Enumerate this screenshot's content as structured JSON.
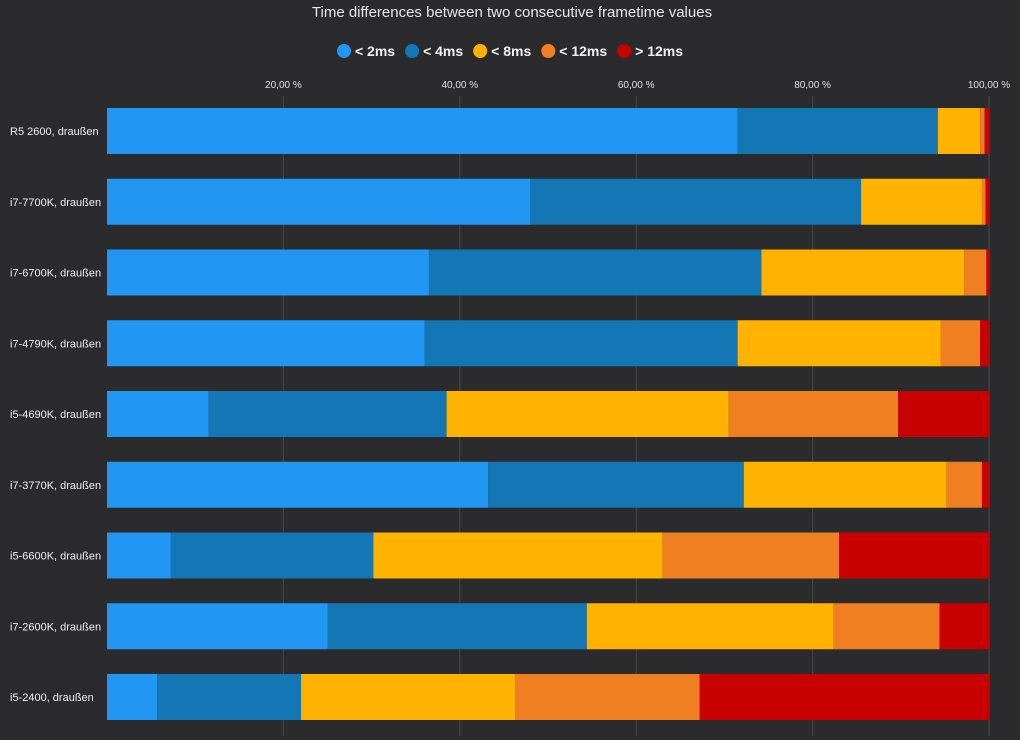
{
  "chart_data": {
    "type": "bar",
    "orientation": "horizontal",
    "stacked": true,
    "title": "Time differences between two consecutive frametime values",
    "xlabel": "",
    "ylabel": "",
    "xlim": [
      0,
      100
    ],
    "xticks": [
      20,
      40,
      60,
      80,
      100
    ],
    "xtick_labels": [
      "20,00 %",
      "40,00 %",
      "60,00 %",
      "80,00 %",
      "100,00 %"
    ],
    "grid": true,
    "legend_position": "top",
    "categories": [
      "R5 2600, draußen",
      "i7-7700K, draußen",
      "i7-6700K, draußen",
      "i7-4790K, draußen",
      "i5-4690K, draußen",
      "i7-3770K, draußen",
      "i5-6600K, draußen",
      "i7-2600K, draußen",
      "i5-2400, draußen"
    ],
    "series": [
      {
        "name": "< 2ms",
        "color": "#2196f3",
        "values": [
          71.5,
          48.0,
          36.5,
          36.0,
          11.5,
          43.2,
          7.2,
          25.0,
          5.7
        ]
      },
      {
        "name": "< 4ms",
        "color": "#1376b5",
        "values": [
          22.7,
          37.5,
          37.7,
          35.5,
          27.0,
          29.0,
          23.0,
          29.4,
          16.3
        ]
      },
      {
        "name": "< 8ms",
        "color": "#ffb300",
        "values": [
          4.8,
          13.7,
          23.0,
          23.0,
          32.0,
          23.0,
          32.8,
          28.0,
          24.3
        ]
      },
      {
        "name": "< 12ms",
        "color": "#f07f22",
        "values": [
          0.5,
          0.4,
          2.5,
          4.5,
          19.2,
          4.0,
          20.0,
          12.0,
          20.9
        ]
      },
      {
        "name": "> 12ms",
        "color": "#c80000",
        "values": [
          0.5,
          0.4,
          0.3,
          1.0,
          10.3,
          0.8,
          17.0,
          5.6,
          32.8
        ]
      }
    ]
  }
}
